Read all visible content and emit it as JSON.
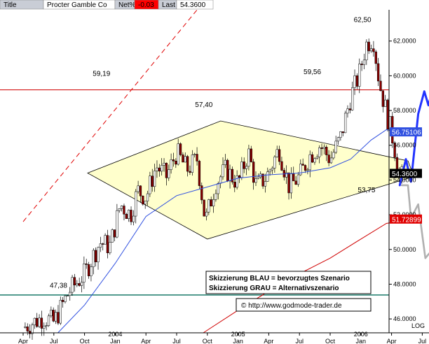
{
  "header": {
    "fields": [
      {
        "text": "Title",
        "bg": "#c9cdd6",
        "color": "#000000"
      },
      {
        "text": "Procter  Gamble Co",
        "bg": "#ffffff",
        "color": "#000000"
      },
      {
        "text": "Net%",
        "bg": "#c9cdd6",
        "color": "#000000"
      },
      {
        "text": "-0.03",
        "bg": "#ff0000",
        "color": "#000000"
      },
      {
        "text": "Last",
        "bg": "#c9cdd6",
        "color": "#000000"
      },
      {
        "text": "54.3600",
        "bg": "#ffffff",
        "color": "#000000"
      }
    ]
  },
  "chart_data": {
    "type": "candlestick",
    "ylim": [
      45.2,
      63.8
    ],
    "y_ticks": [
      "46.0000",
      "48.0000",
      "50.0000",
      "52.0000",
      "54.0000",
      "56.0000",
      "58.0000",
      "60.0000",
      "62.0000"
    ],
    "y_scale_label": "LOG",
    "x_ticks": [
      {
        "label": "Apr",
        "t": 0
      },
      {
        "label": "Jul",
        "t": 3
      },
      {
        "label": "Oct",
        "t": 6
      },
      {
        "label": "Jan",
        "t": 9,
        "year": "2004"
      },
      {
        "label": "Apr",
        "t": 12
      },
      {
        "label": "Jul",
        "t": 15
      },
      {
        "label": "Oct",
        "t": 18
      },
      {
        "label": "Jan",
        "t": 21,
        "year": "2005"
      },
      {
        "label": "Apr",
        "t": 24
      },
      {
        "label": "Jul",
        "t": 27
      },
      {
        "label": "Oct",
        "t": 30
      },
      {
        "label": "Jan",
        "t": 33,
        "year": "2006"
      },
      {
        "label": "Apr",
        "t": 36
      },
      {
        "label": "Jul",
        "t": 39
      }
    ],
    "price_path": [
      [
        0,
        45.5
      ],
      [
        2,
        46.1
      ],
      [
        3,
        45.8
      ],
      [
        4.5,
        47.6
      ],
      [
        6,
        48.6
      ],
      [
        7.5,
        50.4
      ],
      [
        8.5,
        50.2
      ],
      [
        9.5,
        52.6
      ],
      [
        10.5,
        52.0
      ],
      [
        11.2,
        53.4
      ],
      [
        12,
        53.0
      ],
      [
        13,
        54.8
      ],
      [
        14,
        54.2
      ],
      [
        15,
        55.6
      ],
      [
        16,
        54.6
      ],
      [
        17,
        55.2
      ],
      [
        17.8,
        51.6
      ],
      [
        18.8,
        53.8
      ],
      [
        19.8,
        54.6
      ],
      [
        21,
        53.8
      ],
      [
        22,
        55.6
      ],
      [
        22.8,
        53.6
      ],
      [
        23.8,
        54.2
      ],
      [
        25,
        55.8
      ],
      [
        26,
        53.6
      ],
      [
        27,
        54.2
      ],
      [
        28,
        55.4
      ],
      [
        29,
        56.0
      ],
      [
        30,
        55.2
      ],
      [
        31,
        56.4
      ],
      [
        32,
        58.8
      ],
      [
        32.8,
        60.0
      ],
      [
        33.5,
        61.8
      ],
      [
        34.2,
        62.2
      ],
      [
        34.8,
        59.6
      ],
      [
        35.6,
        57.6
      ],
      [
        36.2,
        56.2
      ],
      [
        36.8,
        54.0
      ],
      [
        37.2,
        54.36
      ]
    ],
    "price_path_note": "weekly closes approximated; candles are drawn around this path",
    "moving_averages": [
      {
        "name": "",
        "color": "#3050e0",
        "last": "56.75106",
        "points": [
          [
            3.4,
            45.2
          ],
          [
            6,
            46.8
          ],
          [
            9,
            49.2
          ],
          [
            12,
            51.9
          ],
          [
            15,
            53.1
          ],
          [
            18,
            53.6
          ],
          [
            21,
            54.1
          ],
          [
            24,
            54.3
          ],
          [
            27,
            54.4
          ],
          [
            30,
            54.7
          ],
          [
            32,
            55.2
          ],
          [
            34,
            56.3
          ],
          [
            35.5,
            56.9
          ],
          [
            37.7,
            56.6
          ]
        ]
      },
      {
        "name": "",
        "color": "#d00000",
        "last": "51.72899",
        "points": [
          [
            17.6,
            45.2
          ],
          [
            21,
            46.5
          ],
          [
            24,
            47.6
          ],
          [
            27,
            48.6
          ],
          [
            30,
            49.5
          ],
          [
            33,
            50.6
          ],
          [
            35.5,
            51.5
          ],
          [
            37.7,
            51.7
          ]
        ]
      }
    ],
    "horizontal_lines": [
      {
        "value": 59.19,
        "color": "#d00000"
      },
      {
        "value": 47.38,
        "color": "#1a7a6a"
      }
    ],
    "triangle": {
      "fill": "#ffffcc",
      "vertices": [
        [
          6.3,
          54.4
        ],
        [
          18.0,
          50.6
        ],
        [
          38.2,
          54.2
        ],
        [
          37.6,
          55.1
        ],
        [
          19.3,
          57.4
        ]
      ]
    },
    "dashed_trendline": {
      "color": "#e00000",
      "from": [
        0,
        51.6
      ],
      "to": [
        17,
        63.8
      ]
    },
    "annotations": [
      {
        "text": "59,19",
        "t": 6.8,
        "v": 60.0
      },
      {
        "text": "57,40",
        "t": 16.8,
        "v": 58.2
      },
      {
        "text": "59,56",
        "t": 27.4,
        "v": 60.1
      },
      {
        "text": "62,50",
        "t": 32.3,
        "v": 63.1
      },
      {
        "text": "47,38",
        "t": 2.6,
        "v": 47.8
      },
      {
        "text": "53,75",
        "t": 32.7,
        "v": 53.3
      }
    ],
    "scenarios": [
      {
        "name": "BLAU",
        "color": "#2233ff",
        "dashed": false,
        "points": [
          [
            36.8,
            53.7
          ],
          [
            37.4,
            55.2
          ],
          [
            37.9,
            53.9
          ],
          [
            38.6,
            57.8
          ],
          [
            39.2,
            59.1
          ],
          [
            39.6,
            58.3
          ],
          [
            40.1,
            59.4
          ],
          [
            40.5,
            58.2
          ]
        ]
      },
      {
        "name": "GRAU",
        "color": "#b0b0b0",
        "dashed": false,
        "points": [
          [
            37.0,
            53.7
          ],
          [
            37.6,
            53.7
          ],
          [
            37.9,
            51.8
          ],
          [
            38.6,
            52.6
          ],
          [
            39.3,
            49.5
          ],
          [
            40.0,
            50.0
          ],
          [
            40.4,
            47.3
          ]
        ]
      }
    ],
    "axis_tags": [
      {
        "text": "56.75106",
        "bg": "#3050e0",
        "color": "#ffffff",
        "v": 56.75
      },
      {
        "text": "54.3600",
        "bg": "#000000",
        "color": "#ffffff",
        "v": 54.36
      },
      {
        "text": "51.72899",
        "bg": "#e00000",
        "color": "#ffffff",
        "v": 51.73
      }
    ]
  },
  "legend_box": {
    "line1": "Skizzierung BLAU = bevorzugtes Szenario",
    "line2": "Skizzierung GRAU = Alternativszenario"
  },
  "copyright": "© http://www.godmode-trader.de"
}
